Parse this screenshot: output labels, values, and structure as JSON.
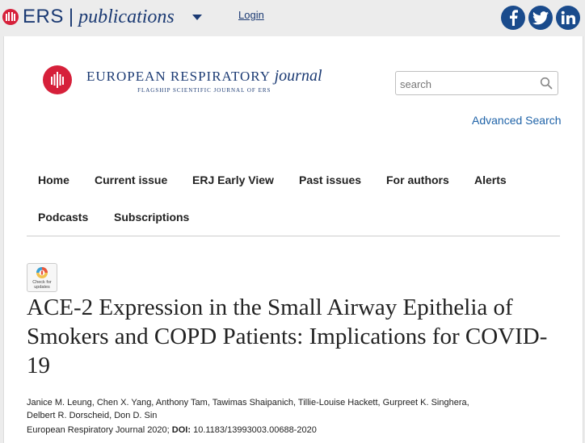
{
  "topbar": {
    "brand": "ERS",
    "brand_separator": "|",
    "brand_publications": "publications",
    "login_label": "Login",
    "social": [
      {
        "name": "facebook",
        "icon": "facebook-icon",
        "color": "#1a4b8c"
      },
      {
        "name": "twitter",
        "icon": "twitter-icon",
        "color": "#1a4b8c"
      },
      {
        "name": "linkedin",
        "icon": "linkedin-icon",
        "color": "#1a4b8c"
      }
    ]
  },
  "journal": {
    "name_main": "EUROPEAN RESPIRATORY",
    "name_italic": "journal",
    "tagline": "FLAGSHIP SCIENTIFIC JOURNAL OF ERS",
    "logo_color": "#d6203a"
  },
  "search": {
    "placeholder": "search",
    "advanced_label": "Advanced Search"
  },
  "nav": {
    "items": [
      "Home",
      "Current issue",
      "ERJ Early View",
      "Past issues",
      "For authors",
      "Alerts",
      "Podcasts",
      "Subscriptions"
    ]
  },
  "crossmark": {
    "line1": "Check for",
    "line2": "updates"
  },
  "article": {
    "title": "ACE-2 Expression in the Small Airway Epithelia of Smokers and COPD Patients: Implications for COVID-19",
    "authors_line1": "Janice M. Leung, Chen X. Yang, Anthony Tam, Tawimas Shaipanich, Tillie-Louise Hackett, Gurpreet K. Singhera,",
    "authors_line2": "Delbert R. Dorscheid, Don D. Sin",
    "citation_journal": "European Respiratory Journal 2020;",
    "doi_label": "DOI:",
    "doi_value": "10.1183/13993003.00688-2020"
  },
  "colors": {
    "brand_blue": "#1b3a73",
    "link_blue": "#1f63a8",
    "erj_red": "#d6203a"
  }
}
